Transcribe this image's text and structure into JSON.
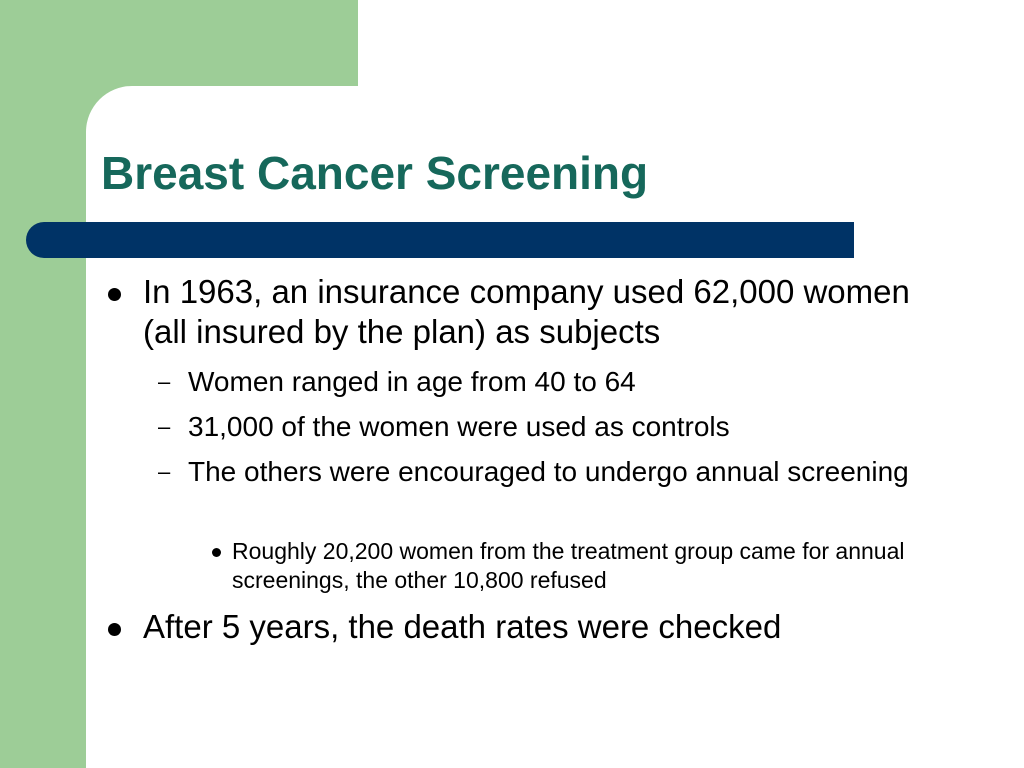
{
  "slide": {
    "title": "Breast Cancer Screening",
    "bullets": [
      {
        "text": "In 1963, an insurance company used 62,000 women (all insured by the plan) as subjects",
        "sub": [
          "Women ranged in age from 40 to 64",
          "31,000 of the women were used as controls",
          "The others were encouraged to undergo annual screening"
        ],
        "subsub": [
          "Roughly 20,200 women from the treatment group came for annual screenings, the other 10,800 refused"
        ]
      },
      {
        "text": "After 5 years, the death rates were checked"
      }
    ],
    "dash_glyph": "–",
    "colors": {
      "green_block": "#9dcd97",
      "title": "#16685b",
      "title_bar": "#003366"
    }
  }
}
